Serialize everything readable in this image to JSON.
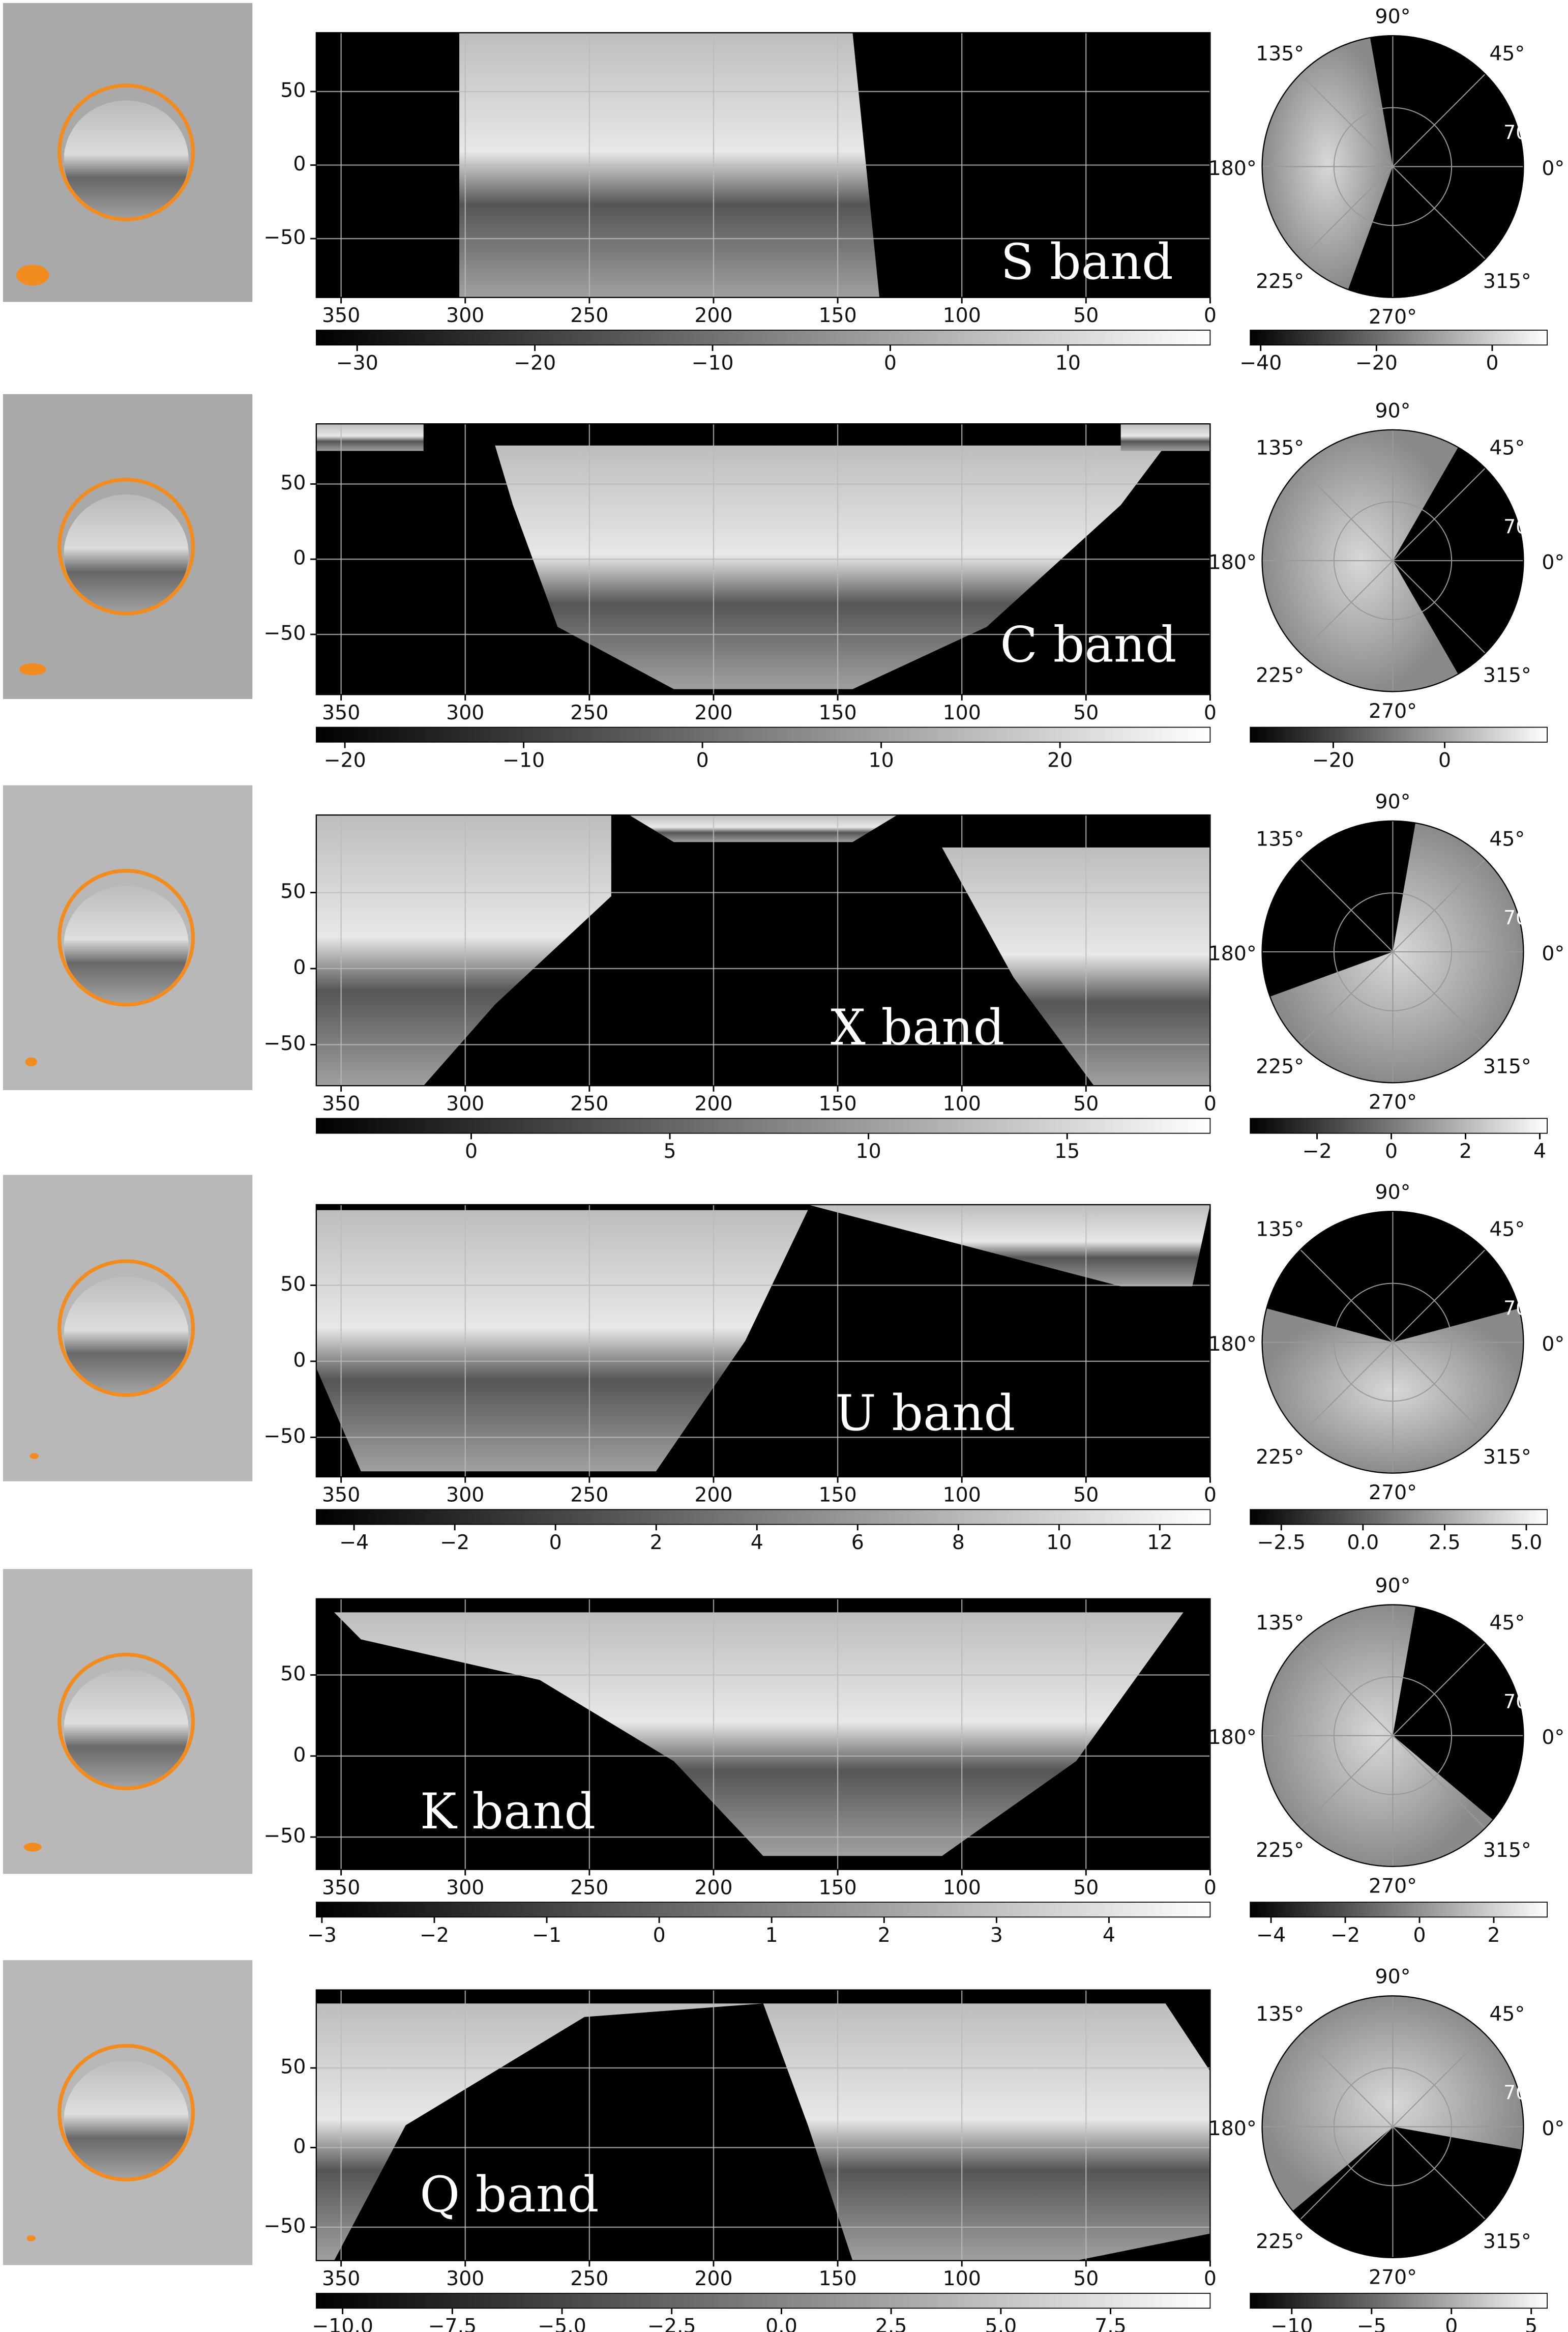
{
  "rows": [
    {
      "band": "S band",
      "map": {
        "xlim": [
          360,
          0
        ],
        "xticks": [
          350,
          300,
          250,
          200,
          150,
          100,
          50,
          0
        ],
        "ylim": [
          -90,
          90
        ],
        "yticks": [
          {
            "value": -50,
            "label": "−50"
          },
          0,
          50
        ]
      },
      "colorbar": {
        "lim": [
          -32.3,
          18
        ],
        "ticks": [
          {
            "value": -30,
            "label": "−30"
          },
          {
            "value": -20,
            "label": "−20"
          },
          {
            "value": -10,
            "label": "−10"
          },
          0,
          10
        ]
      },
      "polar": {
        "angle_labels": [
          "90°",
          "45°",
          "0°",
          "315°",
          "270°",
          "225°",
          "180°",
          "135°"
        ],
        "radius_label": "70.0"
      },
      "polar_colorbar": {
        "lim": [
          -41.8,
          9.5
        ],
        "ticks": [
          {
            "value": -40,
            "label": "−40"
          },
          {
            "value": -20,
            "label": "−20"
          },
          0
        ]
      }
    },
    {
      "band": "C band",
      "map": {
        "xlim": [
          360,
          0
        ],
        "xticks": [
          350,
          300,
          250,
          200,
          150,
          100,
          50,
          0
        ],
        "ylim": [
          -90,
          90
        ],
        "yticks": [
          {
            "value": -50,
            "label": "−50"
          },
          0,
          50
        ]
      },
      "colorbar": {
        "lim": [
          -21.6,
          28.4
        ],
        "ticks": [
          {
            "value": -20,
            "label": "−20"
          },
          {
            "value": -10,
            "label": "−10"
          },
          0,
          10,
          20
        ]
      },
      "polar": {
        "angle_labels": [
          "90°",
          "45°",
          "0°",
          "315°",
          "270°",
          "225°",
          "180°",
          "135°"
        ],
        "radius_label": "70.0"
      },
      "polar_colorbar": {
        "lim": [
          -34.9,
          18.4
        ],
        "ticks": [
          {
            "value": -20,
            "label": "−20"
          },
          0
        ]
      }
    },
    {
      "band": "X band",
      "map": {
        "xlim": [
          360,
          0
        ],
        "xticks": [
          350,
          300,
          250,
          200,
          150,
          100,
          50,
          0
        ],
        "ylim": [
          -77,
          101
        ],
        "yticks": [
          {
            "value": -50,
            "label": "−50"
          },
          0,
          50
        ]
      },
      "colorbar": {
        "lim": [
          -3.9,
          18.6
        ],
        "ticks": [
          0,
          5,
          10,
          15
        ]
      },
      "polar": {
        "angle_labels": [
          "90°",
          "45°",
          "0°",
          "315°",
          "270°",
          "225°",
          "180°",
          "135°"
        ],
        "radius_label": "70.0"
      },
      "polar_colorbar": {
        "lim": [
          -3.8,
          4.2
        ],
        "ticks": [
          {
            "value": -2,
            "label": "−2"
          },
          0,
          2,
          4
        ]
      }
    },
    {
      "band": "U band",
      "map": {
        "xlim": [
          360,
          0
        ],
        "xticks": [
          350,
          300,
          250,
          200,
          150,
          100,
          50,
          0
        ],
        "ylim": [
          -76,
          103
        ],
        "yticks": [
          {
            "value": -50,
            "label": "−50"
          },
          0,
          50
        ]
      },
      "colorbar": {
        "lim": [
          -4.75,
          13
        ],
        "ticks": [
          {
            "value": -4,
            "label": "−4"
          },
          {
            "value": -2,
            "label": "−2"
          },
          0,
          2,
          4,
          6,
          8,
          10,
          12
        ]
      },
      "polar": {
        "angle_labels": [
          "90°",
          "45°",
          "0°",
          "315°",
          "270°",
          "225°",
          "180°",
          "135°"
        ],
        "radius_label": "70.0"
      },
      "polar_colorbar": {
        "lim": [
          -3.45,
          5.64
        ],
        "ticks": [
          {
            "value": -2.5,
            "label": "−2.5"
          },
          {
            "value": 0,
            "label": "0.0"
          },
          2.5,
          {
            "value": 5,
            "label": "5.0"
          }
        ]
      }
    },
    {
      "band": "K band",
      "map": {
        "xlim": [
          360,
          0
        ],
        "xticks": [
          350,
          300,
          250,
          200,
          150,
          100,
          50,
          0
        ],
        "ylim": [
          -70,
          97
        ],
        "yticks": [
          {
            "value": -50,
            "label": "−50"
          },
          0,
          50
        ]
      },
      "colorbar": {
        "lim": [
          -3.05,
          4.9
        ],
        "ticks": [
          {
            "value": -3,
            "label": "−3"
          },
          {
            "value": -2,
            "label": "−2"
          },
          {
            "value": -1,
            "label": "−1"
          },
          0,
          1,
          2,
          3,
          4
        ]
      },
      "polar": {
        "angle_labels": [
          "90°",
          "45°",
          "0°",
          "315°",
          "270°",
          "225°",
          "180°",
          "135°"
        ],
        "radius_label": "70.0"
      },
      "polar_colorbar": {
        "lim": [
          -4.56,
          3.44
        ],
        "ticks": [
          {
            "value": -4,
            "label": "−4"
          },
          {
            "value": -2,
            "label": "−2"
          },
          0,
          2
        ]
      }
    },
    {
      "band": "Q band",
      "map": {
        "xlim": [
          360,
          0
        ],
        "xticks": [
          350,
          300,
          250,
          200,
          150,
          100,
          50,
          0
        ],
        "ylim": [
          -71,
          99
        ],
        "yticks": [
          {
            "value": -50,
            "label": "−50"
          },
          0,
          50
        ]
      },
      "colorbar": {
        "lim": [
          -10.6,
          9.77
        ],
        "ticks": [
          {
            "value": -10,
            "label": "−10.0"
          },
          {
            "value": -7.5,
            "label": "−7.5"
          },
          {
            "value": -5,
            "label": "−5.0"
          },
          {
            "value": -2.5,
            "label": "−2.5"
          },
          {
            "value": 0,
            "label": "0.0"
          },
          2.5,
          {
            "value": 5,
            "label": "5.0"
          },
          7.5
        ]
      },
      "polar": {
        "angle_labels": [
          "90°",
          "45°",
          "0°",
          "315°",
          "270°",
          "225°",
          "180°",
          "135°"
        ],
        "radius_label": "70.0"
      },
      "polar_colorbar": {
        "lim": [
          -12.6,
          6
        ],
        "ticks": [
          {
            "value": -10,
            "label": "−10"
          },
          {
            "value": -5,
            "label": "−5"
          },
          0,
          5
        ]
      }
    }
  ]
}
